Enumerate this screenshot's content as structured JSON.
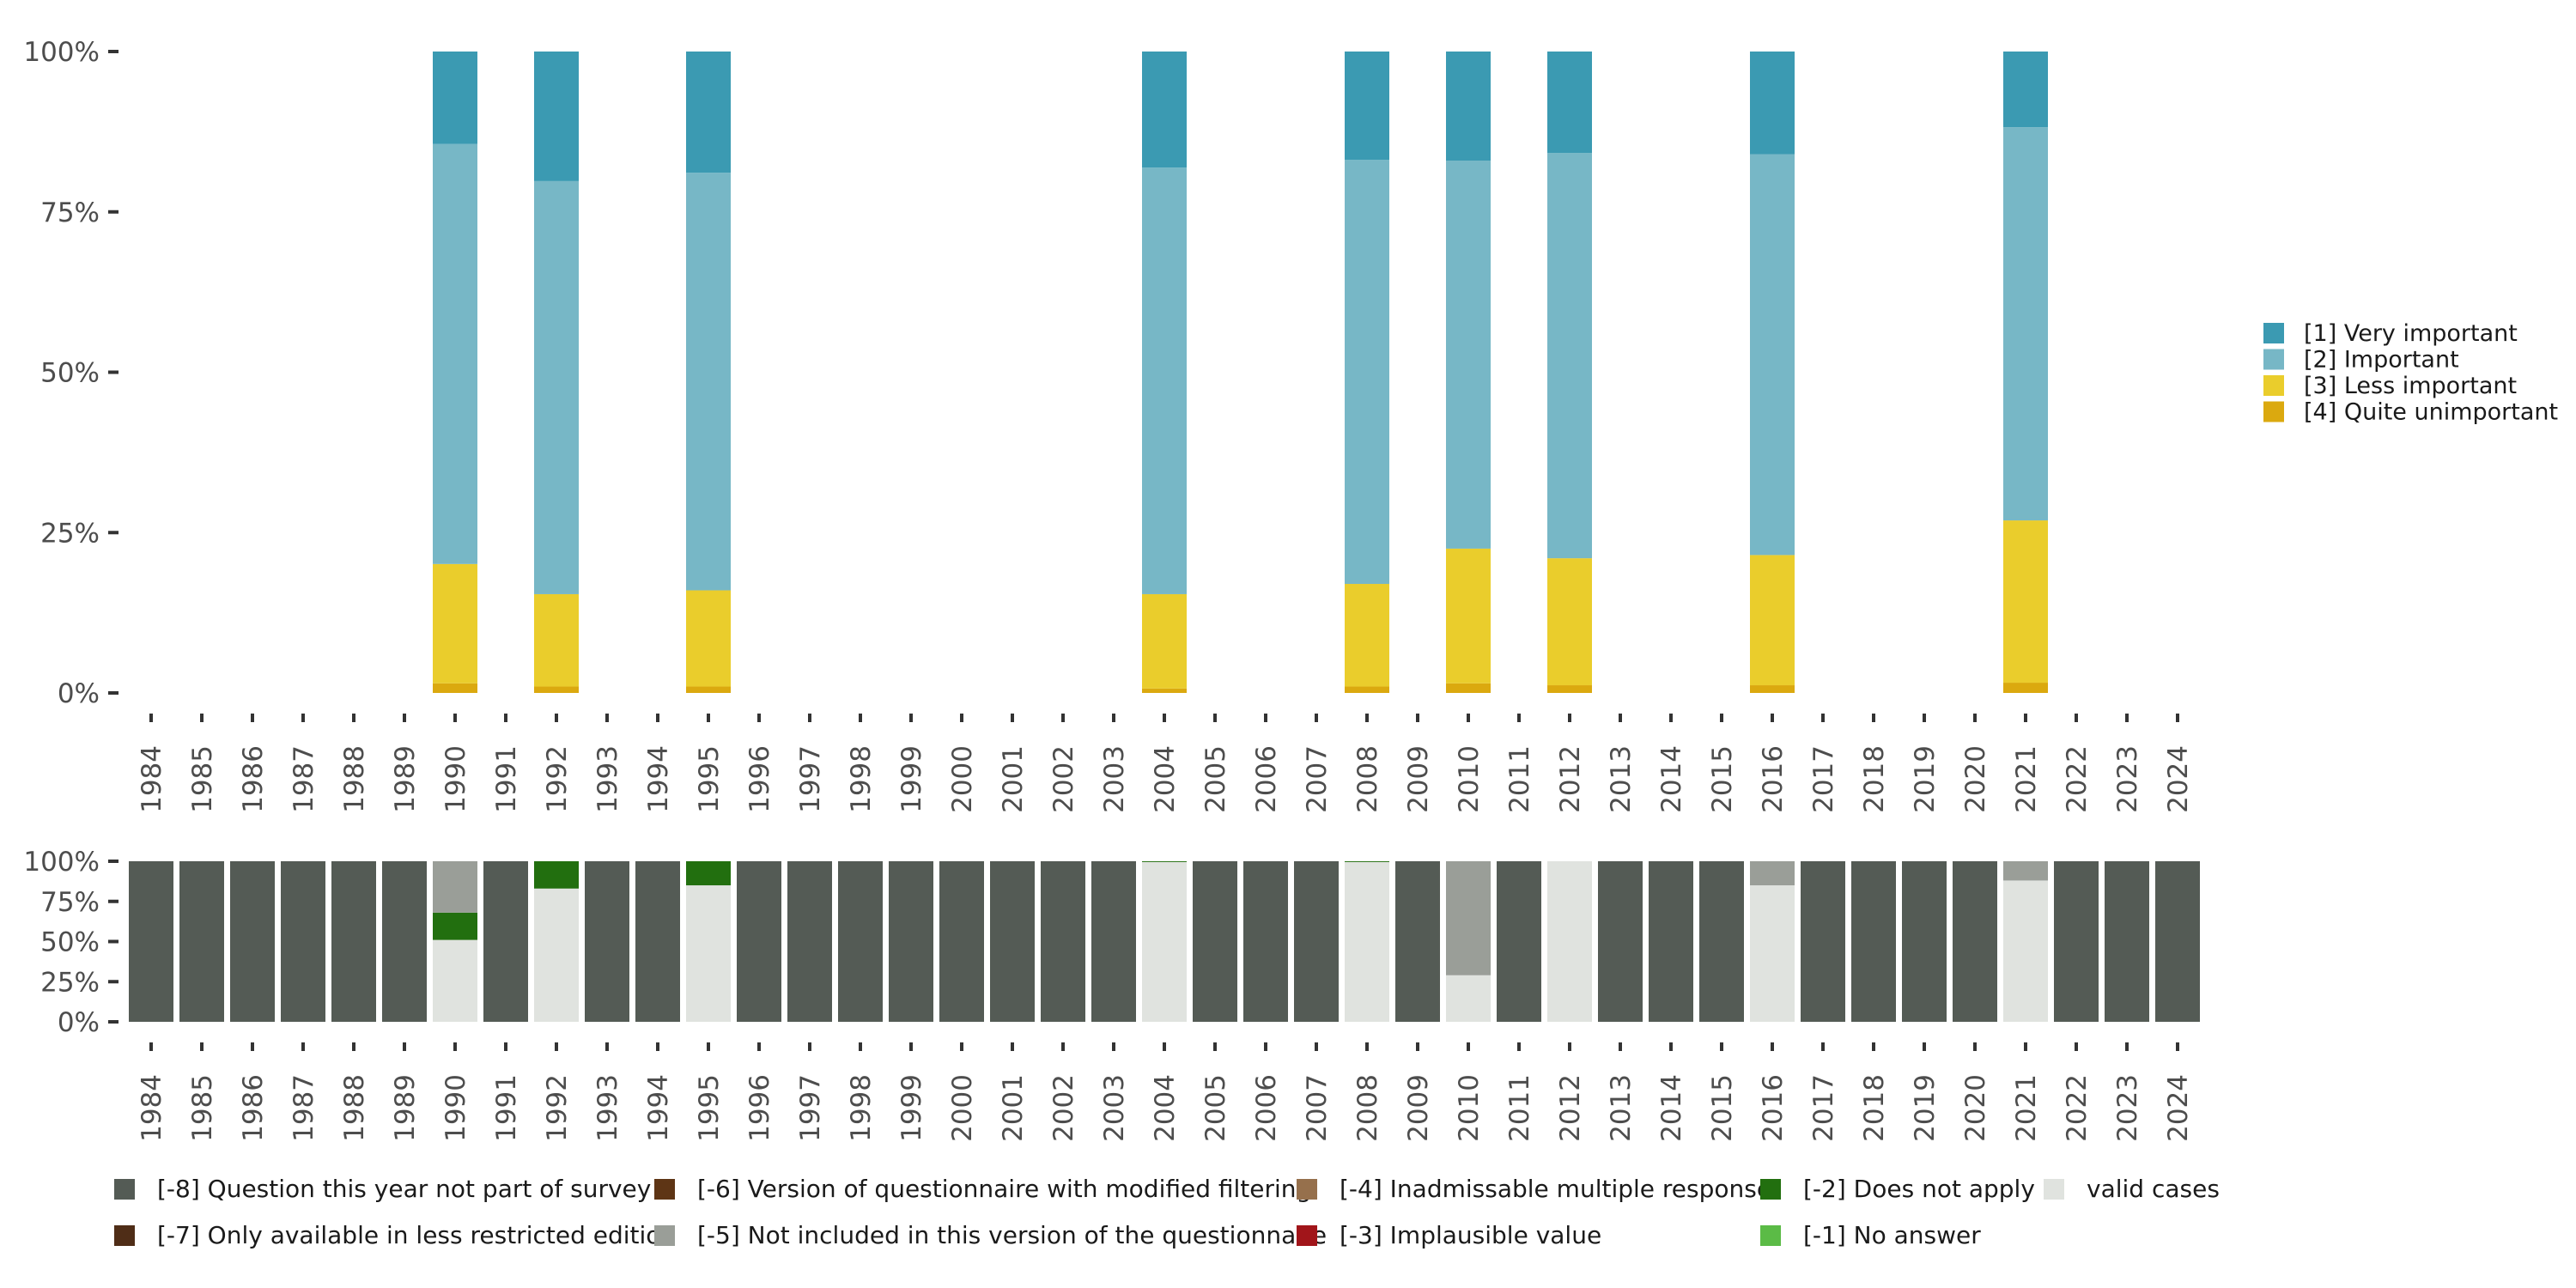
{
  "chart_data": [
    {
      "type": "bar",
      "stacked": true,
      "categories": [
        "1984",
        "1985",
        "1986",
        "1987",
        "1988",
        "1989",
        "1990",
        "1991",
        "1992",
        "1993",
        "1994",
        "1995",
        "1996",
        "1997",
        "1998",
        "1999",
        "2000",
        "2001",
        "2002",
        "2003",
        "2004",
        "2005",
        "2006",
        "2007",
        "2008",
        "2009",
        "2010",
        "2011",
        "2012",
        "2013",
        "2014",
        "2015",
        "2016",
        "2017",
        "2018",
        "2019",
        "2020",
        "2021",
        "2022",
        "2023",
        "2024"
      ],
      "y_ticks": [
        "0%",
        "25%",
        "50%",
        "75%",
        "100%"
      ],
      "ylim": [
        0,
        100
      ],
      "legend_position": "right",
      "series": [
        {
          "name": "[4] Quite unimportant",
          "color": "#DBA90F",
          "values": {
            "1990": 1.5,
            "1992": 1,
            "1995": 1,
            "2004": 0.7,
            "2008": 1,
            "2010": 1.5,
            "2012": 1.2,
            "2016": 1.2,
            "2021": 1.6
          }
        },
        {
          "name": "[3] Less important",
          "color": "#EACD2C",
          "values": {
            "1990": 18.6,
            "1992": 14.4,
            "1995": 15,
            "2004": 14.7,
            "2008": 16,
            "2010": 21,
            "2012": 19.8,
            "2016": 20.3,
            "2021": 25.3
          }
        },
        {
          "name": "[2] Important",
          "color": "#77B7C6",
          "values": {
            "1990": 65.5,
            "1992": 64.4,
            "1995": 65.1,
            "2004": 66.5,
            "2008": 66.1,
            "2010": 60.5,
            "2012": 63.2,
            "2016": 62.5,
            "2021": 61.3
          }
        },
        {
          "name": "[1] Very important",
          "color": "#3B9AB2",
          "values": {
            "1990": 14.4,
            "1992": 20.2,
            "1995": 18.9,
            "2004": 18.1,
            "2008": 16.9,
            "2010": 17,
            "2012": 15.8,
            "2016": 16,
            "2021": 11.8
          }
        }
      ]
    },
    {
      "type": "bar",
      "stacked": true,
      "categories": [
        "1984",
        "1985",
        "1986",
        "1987",
        "1988",
        "1989",
        "1990",
        "1991",
        "1992",
        "1993",
        "1994",
        "1995",
        "1996",
        "1997",
        "1998",
        "1999",
        "2000",
        "2001",
        "2002",
        "2003",
        "2004",
        "2005",
        "2006",
        "2007",
        "2008",
        "2009",
        "2010",
        "2011",
        "2012",
        "2013",
        "2014",
        "2015",
        "2016",
        "2017",
        "2018",
        "2019",
        "2020",
        "2021",
        "2022",
        "2023",
        "2024"
      ],
      "y_ticks": [
        "0%",
        "25%",
        "50%",
        "75%",
        "100%"
      ],
      "ylim": [
        0,
        100
      ],
      "legend_position": "bottom",
      "legend_rows": [
        [
          "[-8] Question this year not part of survey",
          "[-6] Version of questionnaire with modified filtering",
          "[-4] Inadmissable multiple response",
          "[-2] Does not apply",
          "valid cases"
        ],
        [
          "[-7] Only available in less restricted edition",
          "[-5] Not included in this version of the questionnaire",
          "[-3] Implausible value",
          "[-1] No answer"
        ]
      ],
      "series": [
        {
          "name": "valid cases",
          "color": "#E0E3DF",
          "values": {
            "1990": 51,
            "1992": 83,
            "1995": 85,
            "2004": 99.5,
            "2008": 99.5,
            "2010": 29,
            "2012": 100,
            "2016": 85,
            "2021": 88
          }
        },
        {
          "name": "[-2] Does not apply",
          "color": "#226F0F",
          "values": {
            "1990": 17,
            "1992": 17,
            "1995": 15,
            "2004": 0.5,
            "2008": 0.5
          }
        },
        {
          "name": "[-5] Not included in this version of the questionnaire",
          "color": "#9A9E98",
          "values": {
            "1990": 32,
            "2010": 71,
            "2016": 15,
            "2021": 12
          }
        },
        {
          "name": "[-8] Question this year not part of survey",
          "color": "#545B55",
          "values": {
            "1984": 100,
            "1985": 100,
            "1986": 100,
            "1987": 100,
            "1988": 100,
            "1989": 100,
            "1991": 100,
            "1993": 100,
            "1994": 100,
            "1996": 100,
            "1997": 100,
            "1998": 100,
            "1999": 100,
            "2000": 100,
            "2001": 100,
            "2002": 100,
            "2003": 100,
            "2005": 100,
            "2006": 100,
            "2007": 100,
            "2009": 100,
            "2011": 100,
            "2013": 100,
            "2014": 100,
            "2015": 100,
            "2017": 100,
            "2018": 100,
            "2019": 100,
            "2020": 100,
            "2022": 100,
            "2023": 100,
            "2024": 100
          }
        }
      ],
      "legend_colors": {
        "[-8] Question this year not part of survey": "#545B55",
        "[-7] Only available in less restricted edition": "#4F2D17",
        "[-6] Version of questionnaire with modified filtering": "#5E3515",
        "[-5] Not included in this version of the questionnaire": "#9A9E98",
        "[-4] Inadmissable multiple response": "#96704C",
        "[-3] Implausible value": "#A1151A",
        "[-2] Does not apply": "#226F0F",
        "[-1] No answer": "#5BBB46",
        "valid cases": "#E0E3DF"
      }
    }
  ]
}
